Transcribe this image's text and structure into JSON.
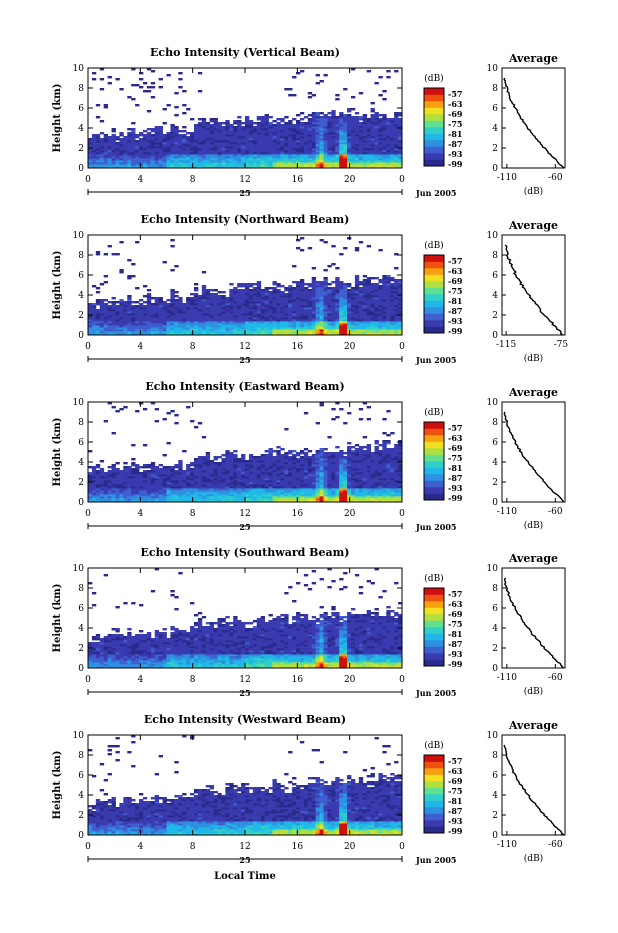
{
  "figure": {
    "xlabel": "Local Time",
    "height_unit_label": "Height (km)",
    "date_label": "Jun 2005",
    "day_label": "25",
    "x_ticks": [
      "0",
      "4",
      "8",
      "12",
      "16",
      "20",
      "0"
    ],
    "y_ticks": [
      "0",
      "2",
      "4",
      "6",
      "8",
      "10"
    ],
    "colorbar_unit": "(dB)",
    "colorbar_ticks": [
      "-57",
      "-63",
      "-69",
      "-75",
      "-81",
      "-87",
      "-93",
      "-99"
    ],
    "colors": {
      "palette": [
        "#2a2a8c",
        "#3b3bb0",
        "#3f5fd0",
        "#2f8fe0",
        "#20b8e8",
        "#30d0c8",
        "#60e090",
        "#b0e040",
        "#f0e020",
        "#f8a010",
        "#f05010",
        "#d01010"
      ],
      "background": "#ffffff"
    }
  },
  "chart_data": [
    {
      "type": "heatmap",
      "title": "Echo Intensity (Vertical Beam)",
      "xlabel": "",
      "ylabel": "Height (km)",
      "xlim": [
        0,
        24
      ],
      "ylim": [
        0,
        10
      ],
      "clim": [
        -99,
        -57
      ],
      "avg_title": "Average",
      "avg_xlabel": "(dB)",
      "avg_xticks": [
        "-110",
        "-60"
      ],
      "avg_xlim": [
        -115,
        -50
      ]
    },
    {
      "type": "heatmap",
      "title": "Echo Intensity (Northward Beam)",
      "xlabel": "",
      "ylabel": "Height (km)",
      "xlim": [
        0,
        24
      ],
      "ylim": [
        0,
        10
      ],
      "clim": [
        -99,
        -57
      ],
      "avg_title": "Average",
      "avg_xlabel": "(dB)",
      "avg_xticks": [
        "-115",
        "-75"
      ],
      "avg_xlim": [
        -118,
        -72
      ]
    },
    {
      "type": "heatmap",
      "title": "Echo Intensity (Eastward Beam)",
      "xlabel": "",
      "ylabel": "Height (km)",
      "xlim": [
        0,
        24
      ],
      "ylim": [
        0,
        10
      ],
      "clim": [
        -99,
        -57
      ],
      "avg_title": "Average",
      "avg_xlabel": "(dB)",
      "avg_xticks": [
        "-110",
        "-60"
      ],
      "avg_xlim": [
        -115,
        -50
      ]
    },
    {
      "type": "heatmap",
      "title": "Echo Intensity (Southward Beam)",
      "xlabel": "",
      "ylabel": "Height (km)",
      "xlim": [
        0,
        24
      ],
      "ylim": [
        0,
        10
      ],
      "clim": [
        -99,
        -57
      ],
      "avg_title": "Average",
      "avg_xlabel": "(dB)",
      "avg_xticks": [
        "-110",
        "-60"
      ],
      "avg_xlim": [
        -115,
        -50
      ]
    },
    {
      "type": "heatmap",
      "title": "Echo Intensity (Westward Beam)",
      "xlabel": "Local Time",
      "ylabel": "Height (km)",
      "xlim": [
        0,
        24
      ],
      "ylim": [
        0,
        10
      ],
      "clim": [
        -99,
        -57
      ],
      "avg_title": "Average",
      "avg_xlabel": "(dB)",
      "avg_xticks": [
        "-110",
        "-60"
      ],
      "avg_xlim": [
        -115,
        -50
      ]
    }
  ]
}
